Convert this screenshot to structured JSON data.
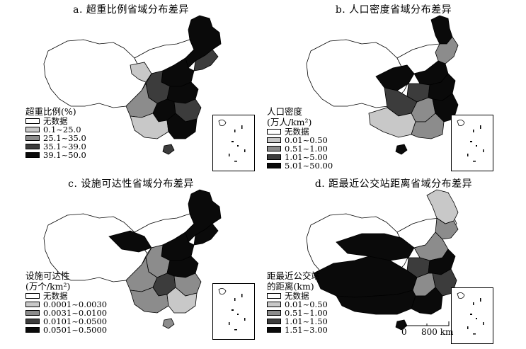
{
  "panels": [
    {
      "title": "a. 超重比例省域分布差异",
      "legend_title": [
        "超重比例(%)"
      ],
      "legend": [
        {
          "label": "无数据",
          "color": "#ffffff"
        },
        {
          "label": "0.1~25.0",
          "color": "#c8c8c8"
        },
        {
          "label": "25.1~35.0",
          "color": "#8c8c8c"
        },
        {
          "label": "35.1~39.0",
          "color": "#3c3c3c"
        },
        {
          "label": "39.1~50.0",
          "color": "#0a0a0a"
        }
      ]
    },
    {
      "title": "b. 人口密度省域分布差异",
      "legend_title": [
        "人口密度",
        "(万人/km²)"
      ],
      "legend": [
        {
          "label": "无数据",
          "color": "#ffffff"
        },
        {
          "label": "0.01~0.50",
          "color": "#c8c8c8"
        },
        {
          "label": "0.51~1.00",
          "color": "#8c8c8c"
        },
        {
          "label": "1.01~5.00",
          "color": "#3c3c3c"
        },
        {
          "label": "5.01~50.00",
          "color": "#0a0a0a"
        }
      ]
    },
    {
      "title": "c. 设施可达性省域分布差异",
      "legend_title": [
        "设施可达性",
        "(万个/km²)"
      ],
      "legend": [
        {
          "label": "无数据",
          "color": "#ffffff"
        },
        {
          "label": "0.0001~0.0030",
          "color": "#c8c8c8"
        },
        {
          "label": "0.0031~0.0100",
          "color": "#8c8c8c"
        },
        {
          "label": "0.0101~0.0500",
          "color": "#3c3c3c"
        },
        {
          "label": "0.0501~0.5000",
          "color": "#0a0a0a"
        }
      ]
    },
    {
      "title": "d. 距最近公交站距离省域分布差异",
      "legend_title": [
        "距最近公交站",
        "的距离(km)"
      ],
      "legend": [
        {
          "label": "无数据",
          "color": "#ffffff"
        },
        {
          "label": "0.01~0.50",
          "color": "#c8c8c8"
        },
        {
          "label": "0.51~1.00",
          "color": "#8c8c8c"
        },
        {
          "label": "1.01~1.50",
          "color": "#3c3c3c"
        },
        {
          "label": "1.51~3.00",
          "color": "#0a0a0a"
        }
      ]
    }
  ],
  "scale": {
    "zero": "0",
    "distance": "800 km"
  }
}
